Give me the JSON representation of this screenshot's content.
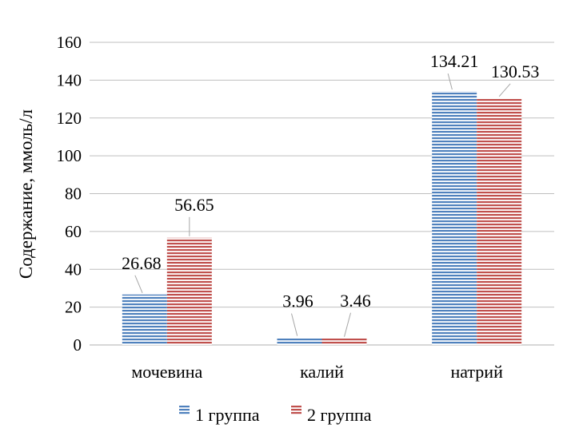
{
  "chart_data": {
    "type": "bar",
    "title": "",
    "xlabel": "",
    "ylabel": "Содержание, ммоль/л",
    "categories": [
      "мочевина",
      "калий",
      "натрий"
    ],
    "series": [
      {
        "name": "1 группа",
        "values": [
          26.68,
          3.96,
          134.21
        ],
        "labels": [
          "26.68",
          "3.96",
          "134.21"
        ],
        "color": "#4f81bd"
      },
      {
        "name": "2 группа",
        "values": [
          56.65,
          3.46,
          130.53
        ],
        "labels": [
          "56.65",
          "3.46",
          "130.53"
        ],
        "color": "#c0504d"
      }
    ],
    "ylim": [
      0,
      160
    ],
    "yticks": [
      "0",
      "20",
      "40",
      "60",
      "80",
      "100",
      "120",
      "140",
      "160"
    ],
    "grid": true,
    "legend": "bottom"
  }
}
